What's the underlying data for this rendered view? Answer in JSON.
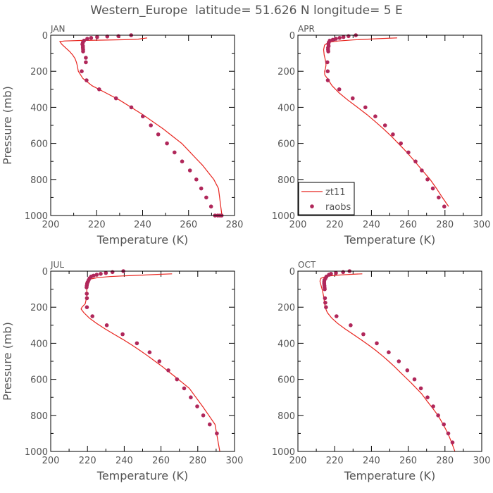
{
  "title": "Western_Europe  latitude= 51.626 N longitude= 5 E",
  "colors": {
    "model": "#e8251f",
    "obs": "#b0275a"
  },
  "chart_data": [
    {
      "type": "line",
      "panel": "JAN",
      "xlabel": "Temperature (K)",
      "ylabel": "Pressure (mb)",
      "xlim": [
        200,
        280
      ],
      "ylim": [
        1000,
        0
      ],
      "xticks": [
        "200",
        "220",
        "240",
        "260",
        "280"
      ],
      "yticks": [
        "0",
        "200",
        "400",
        "600",
        "800",
        "1000"
      ],
      "series": [
        {
          "name": "zt11",
          "style": "line",
          "x": [
            242.0,
            238.0,
            232.0,
            224.0,
            214.0,
            206.0,
            204.0,
            204.8,
            206.5,
            208.2,
            209.6,
            210.6,
            211.2,
            211.6,
            212.0,
            214.0,
            218.0,
            224.0,
            230.0,
            235.0,
            240.0,
            244.5,
            249.0,
            253.0,
            257.0,
            260.0,
            263.0,
            266.0,
            268.5,
            271.0,
            273.0,
            274.5
          ],
          "y": [
            15,
            22,
            25,
            27,
            29,
            32,
            35,
            50,
            70,
            90,
            110,
            130,
            150,
            170,
            200,
            240,
            280,
            320,
            360,
            400,
            440,
            480,
            520,
            560,
            600,
            640,
            680,
            720,
            760,
            800,
            850,
            1000
          ]
        },
        {
          "name": "raobs",
          "style": "marker",
          "x": [
            235.0,
            229.5,
            224.6,
            220.2,
            217.6,
            215.9,
            214.5,
            214.0,
            213.8,
            214.0,
            214.0,
            214.1,
            214.1,
            215.3,
            215.3,
            213.5,
            215.6,
            221.1,
            228.4,
            235.1,
            240.1,
            243.6,
            246.8,
            250.6,
            253.9,
            257.2,
            260.6,
            263.4,
            265.5,
            267.7,
            269.8,
            271.5,
            272.7,
            273.7,
            274.4
          ],
          "y": [
            0,
            5,
            7,
            10,
            15,
            20,
            30,
            40,
            50,
            60,
            70,
            80,
            90,
            125,
            150,
            200,
            250,
            300,
            350,
            400,
            450,
            500,
            550,
            600,
            650,
            700,
            750,
            800,
            850,
            900,
            950,
            1000,
            1000,
            1000,
            1000
          ]
        }
      ]
    },
    {
      "type": "line",
      "panel": "APR",
      "xlabel": "Temperature (K)",
      "ylabel": "",
      "xlim": [
        200,
        300
      ],
      "ylim": [
        1000,
        0
      ],
      "xticks": [
        "200",
        "220",
        "240",
        "260",
        "280",
        "300"
      ],
      "yticks": [
        "0",
        "200",
        "400",
        "600",
        "800",
        "1000"
      ],
      "legend": {
        "position": "bottom-left",
        "entries": [
          "zt11",
          "raobs"
        ]
      },
      "series": [
        {
          "name": "zt11",
          "style": "line",
          "x": [
            254.0,
            246.0,
            238.0,
            230.0,
            222.0,
            216.5,
            214.5,
            214.0,
            214.3,
            215.0,
            215.3,
            215.0,
            214.5,
            214.6,
            216.0,
            218.6,
            222.4,
            227.2,
            232.4,
            237.5,
            242.2,
            246.6,
            250.8,
            254.6,
            258.4,
            261.9,
            265.2,
            268.6,
            271.9,
            275.4,
            278.6,
            282.0
          ],
          "y": [
            15,
            18,
            22,
            26,
            32,
            40,
            55,
            80,
            110,
            140,
            165,
            185,
            200,
            220,
            240,
            280,
            320,
            360,
            400,
            440,
            480,
            520,
            560,
            600,
            640,
            680,
            720,
            760,
            800,
            850,
            900,
            950
          ]
        },
        {
          "name": "raobs",
          "style": "marker",
          "x": [
            231.5,
            227.5,
            224.8,
            222.7,
            220.6,
            219.0,
            217.3,
            216.8,
            216.6,
            216.7,
            216.4,
            216.4,
            216.5,
            216.0,
            216.2,
            216.3,
            222.5,
            229.8,
            236.7,
            242.1,
            247.4,
            251.7,
            256.0,
            260.1,
            264.0,
            267.4,
            270.5,
            273.4,
            276.6,
            279.6
          ],
          "y": [
            0,
            5,
            10,
            15,
            20,
            25,
            30,
            40,
            50,
            60,
            70,
            80,
            90,
            150,
            200,
            250,
            300,
            350,
            400,
            450,
            500,
            550,
            600,
            650,
            700,
            750,
            800,
            850,
            900,
            950
          ]
        }
      ]
    },
    {
      "type": "line",
      "panel": "JUL",
      "xlabel": "Temperature (K)",
      "ylabel": "Pressure (mb)",
      "xlim": [
        200,
        300
      ],
      "ylim": [
        1000,
        0
      ],
      "xticks": [
        "200",
        "220",
        "240",
        "260",
        "280",
        "300"
      ],
      "yticks": [
        "0",
        "200",
        "400",
        "600",
        "800",
        "1000"
      ],
      "series": [
        {
          "name": "zt11",
          "style": "line",
          "x": [
            266.0,
            258.0,
            250.0,
            240.0,
            232.0,
            225.5,
            221.0,
            219.2,
            219.6,
            219.6,
            218.8,
            217.0,
            216.5,
            218.0,
            221.0,
            225.0,
            229.5,
            234.5,
            239.5,
            244.2,
            248.6,
            252.8,
            256.8,
            260.8,
            264.5,
            268.2,
            271.8,
            275.4,
            279.0,
            282.6,
            286.0,
            289.4,
            292.0
          ],
          "y": [
            15,
            18,
            22,
            26,
            30,
            36,
            45,
            60,
            90,
            140,
            180,
            200,
            210,
            230,
            260,
            290,
            320,
            350,
            380,
            410,
            440,
            470,
            500,
            530,
            560,
            590,
            620,
            650,
            700,
            750,
            800,
            850,
            1000
          ]
        },
        {
          "name": "raobs",
          "style": "marker",
          "x": [
            239.5,
            233.6,
            230.0,
            227.2,
            225.0,
            223.3,
            222.0,
            221.1,
            220.6,
            220.2,
            219.8,
            219.6,
            219.5,
            219.6,
            219.7,
            219.7,
            222.7,
            230.5,
            239.1,
            246.9,
            253.8,
            259.1,
            264.0,
            268.7,
            272.6,
            276.2,
            279.7,
            283.0,
            286.5,
            290.4
          ],
          "y": [
            0,
            5,
            10,
            15,
            20,
            25,
            30,
            40,
            50,
            60,
            70,
            80,
            90,
            125,
            150,
            200,
            250,
            300,
            350,
            400,
            450,
            500,
            550,
            600,
            650,
            700,
            750,
            800,
            850,
            900
          ]
        }
      ]
    },
    {
      "type": "line",
      "panel": "OCT",
      "xlabel": "Temperature (K)",
      "ylabel": "",
      "xlim": [
        200,
        300
      ],
      "ylim": [
        1000,
        0
      ],
      "xticks": [
        "200",
        "220",
        "240",
        "260",
        "280",
        "300"
      ],
      "yticks": [
        "0",
        "200",
        "400",
        "600",
        "800",
        "1000"
      ],
      "series": [
        {
          "name": "zt11",
          "style": "line",
          "x": [
            235.0,
            228.0,
            222.0,
            217.5,
            214.5,
            212.5,
            212.0,
            212.6,
            213.4,
            214.0,
            214.4,
            214.8,
            216.0,
            218.4,
            221.6,
            225.6,
            230.0,
            234.3,
            238.5,
            242.4,
            246.0,
            249.4,
            252.6,
            255.6,
            258.6,
            261.6,
            264.5,
            267.3,
            270.2,
            273.3,
            276.2,
            279.0,
            281.6,
            283.6,
            285.4
          ],
          "y": [
            15,
            18,
            22,
            26,
            32,
            40,
            55,
            80,
            110,
            140,
            170,
            200,
            230,
            260,
            290,
            320,
            350,
            380,
            410,
            440,
            470,
            500,
            530,
            560,
            590,
            620,
            650,
            680,
            720,
            760,
            800,
            850,
            900,
            950,
            1000
          ]
        },
        {
          "name": "raobs",
          "style": "marker",
          "x": [
            228.1,
            224.6,
            220.7,
            218.0,
            216.9,
            215.5,
            215.0,
            214.4,
            214.3,
            214.3,
            214.4,
            214.5,
            214.6,
            214.7,
            214.9,
            215.3,
            221.0,
            228.7,
            235.6,
            242.9,
            249.4,
            254.9,
            259.5,
            263.4,
            266.9,
            270.5,
            273.6,
            276.3,
            279.4,
            281.8,
            284.1
          ],
          "y": [
            0,
            5,
            10,
            15,
            20,
            30,
            40,
            50,
            60,
            70,
            80,
            90,
            100,
            150,
            175,
            200,
            250,
            300,
            350,
            400,
            450,
            500,
            550,
            600,
            650,
            700,
            750,
            800,
            850,
            900,
            950
          ]
        }
      ]
    }
  ]
}
